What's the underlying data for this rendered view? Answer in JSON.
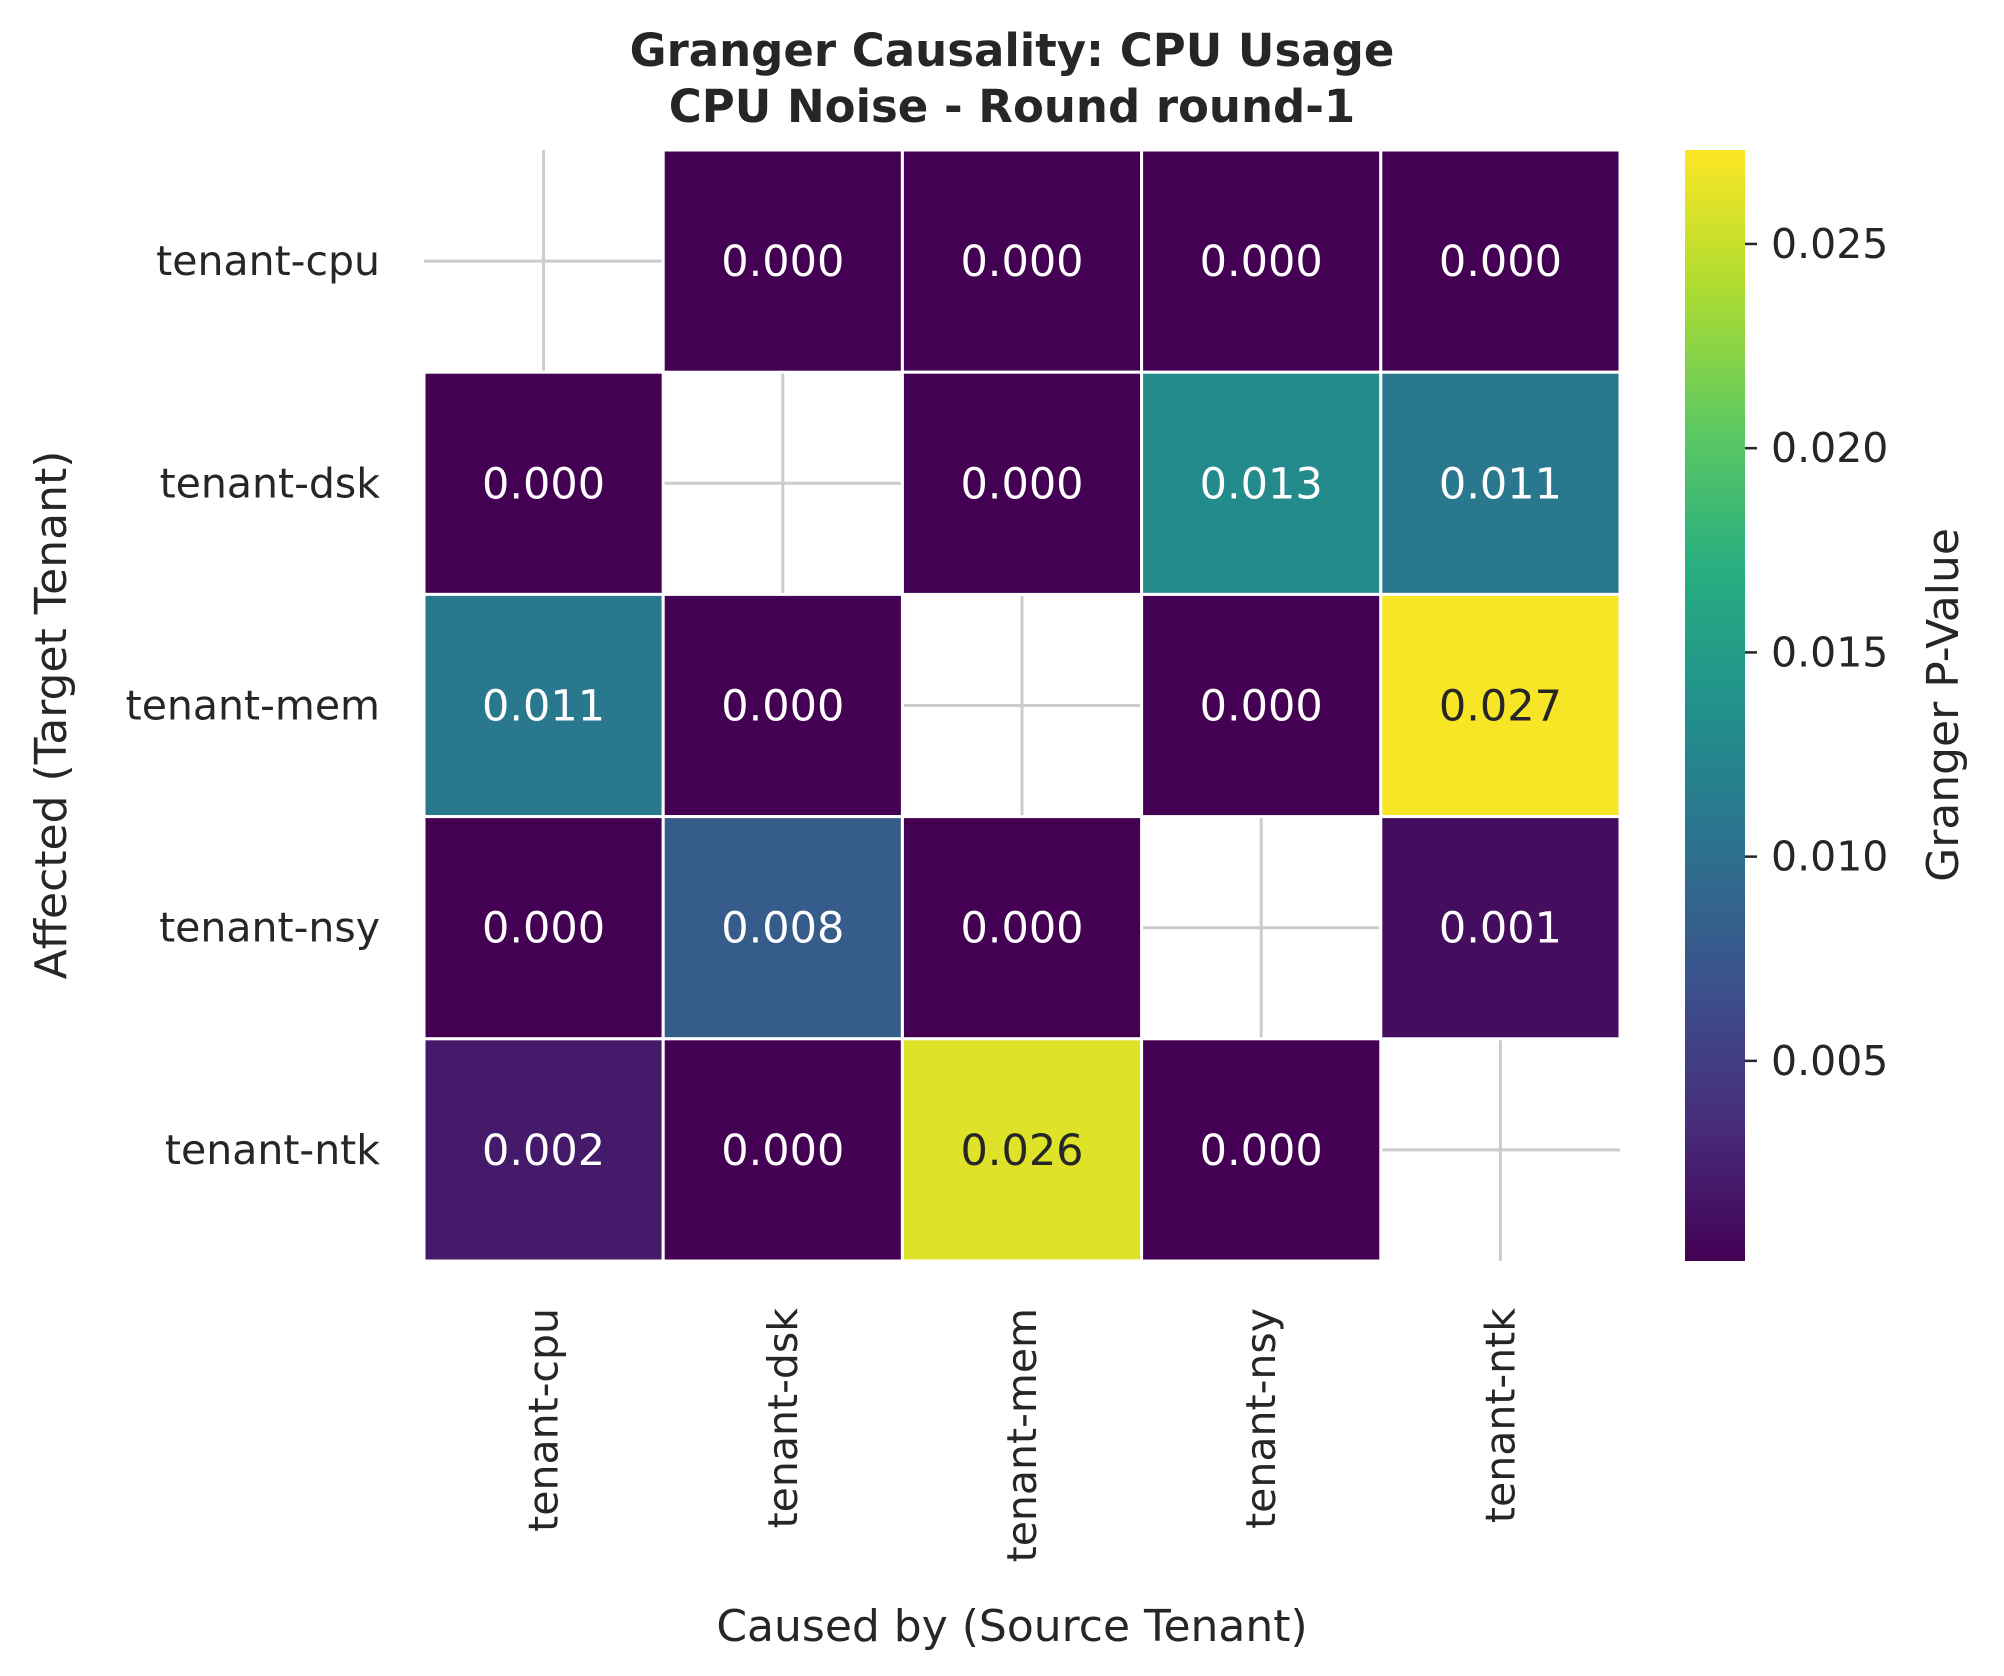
{
  "chart_data": {
    "type": "heatmap",
    "title_line1": "Granger Causality: CPU Usage",
    "title_line2": "CPU Noise - Round round-1",
    "xlabel": "Caused by (Source Tenant)",
    "ylabel": "Affected (Target Tenant)",
    "x_categories": [
      "tenant-cpu",
      "tenant-dsk",
      "tenant-mem",
      "tenant-nsy",
      "tenant-ntk"
    ],
    "y_categories": [
      "tenant-cpu",
      "tenant-dsk",
      "tenant-mem",
      "tenant-nsy",
      "tenant-ntk"
    ],
    "values": [
      [
        null,
        0.0,
        0.0,
        0.0,
        0.0
      ],
      [
        0.0,
        null,
        0.0,
        0.013,
        0.011
      ],
      [
        0.011,
        0.0,
        null,
        0.0,
        0.027
      ],
      [
        0.0,
        0.008,
        0.0,
        null,
        0.001
      ],
      [
        0.002,
        0.0,
        0.026,
        0.0,
        null
      ]
    ],
    "annotations": [
      [
        "",
        "0.000",
        "0.000",
        "0.000",
        "0.000"
      ],
      [
        "0.000",
        "",
        "0.000",
        "0.013",
        "0.011"
      ],
      [
        "0.011",
        "0.000",
        "",
        "0.000",
        "0.027"
      ],
      [
        "0.000",
        "0.008",
        "0.000",
        "",
        "0.001"
      ],
      [
        "0.002",
        "0.000",
        "0.026",
        "0.000",
        ""
      ]
    ],
    "colormap": "viridis",
    "colorbar": {
      "label": "Granger P-Value",
      "range": [
        0.0001,
        0.0273
      ],
      "ticks": [
        0.005,
        0.01,
        0.015,
        0.02,
        0.025
      ],
      "tick_labels": [
        "0.005",
        "0.010",
        "0.015",
        "0.020",
        "0.025"
      ]
    },
    "grid": true
  }
}
